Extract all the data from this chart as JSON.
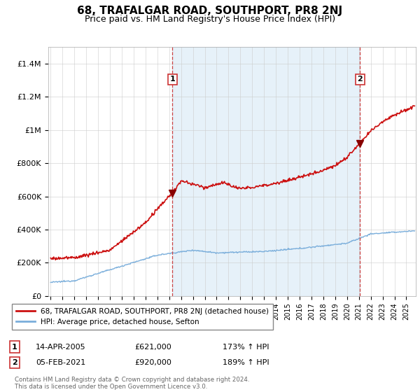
{
  "title": "68, TRAFALGAR ROAD, SOUTHPORT, PR8 2NJ",
  "subtitle": "Price paid vs. HM Land Registry's House Price Index (HPI)",
  "title_fontsize": 11,
  "subtitle_fontsize": 9,
  "hpi_color": "#7aaedb",
  "hpi_fill_color": "#d6e8f5",
  "price_color": "#cc1111",
  "marker_color": "#880000",
  "ylim": [
    0,
    1500000
  ],
  "yticks": [
    0,
    200000,
    400000,
    600000,
    800000,
    1000000,
    1200000,
    1400000
  ],
  "ytick_labels": [
    "£0",
    "£200K",
    "£400K",
    "£600K",
    "£800K",
    "£1M",
    "£1.2M",
    "£1.4M"
  ],
  "legend_label_red": "68, TRAFALGAR ROAD, SOUTHPORT, PR8 2NJ (detached house)",
  "legend_label_blue": "HPI: Average price, detached house, Sefton",
  "transaction1_label": "1",
  "transaction1_date": "14-APR-2005",
  "transaction1_price": "£621,000",
  "transaction1_hpi": "173% ↑ HPI",
  "transaction1_year": 2005.28,
  "transaction1_value": 621000,
  "transaction2_label": "2",
  "transaction2_date": "05-FEB-2021",
  "transaction2_price": "£920,000",
  "transaction2_hpi": "189% ↑ HPI",
  "transaction2_year": 2021.09,
  "transaction2_value": 920000,
  "footer": "Contains HM Land Registry data © Crown copyright and database right 2024.\nThis data is licensed under the Open Government Licence v3.0.",
  "xmin": 1994.8,
  "xmax": 2025.8
}
